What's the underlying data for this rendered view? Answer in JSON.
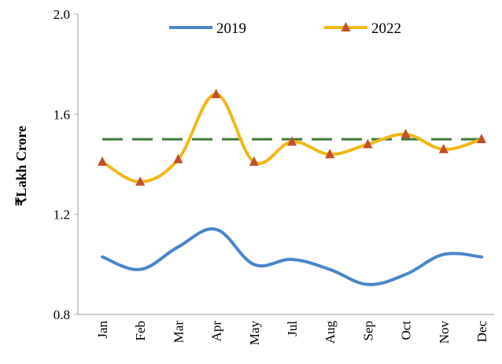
{
  "chart_data": {
    "type": "line",
    "title": "",
    "xlabel": "",
    "ylabel": "₹Lakh Crore",
    "categories": [
      "Jan",
      "Feb",
      "Mar",
      "Apr",
      "May",
      "Jul",
      "Aug",
      "Sep",
      "Oct",
      "Nov",
      "Dec"
    ],
    "ylim": [
      0.8,
      2.0
    ],
    "yticks": [
      "0.8",
      "1.2",
      "1.6",
      "2.0"
    ],
    "grid": false,
    "legend_position": "top",
    "series": [
      {
        "name": "2019",
        "values": [
          1.03,
          0.98,
          1.07,
          1.14,
          1.0,
          1.02,
          0.98,
          0.92,
          0.96,
          1.04,
          1.03
        ],
        "color": "#4a86c8",
        "marker": "none"
      },
      {
        "name": "2022",
        "values": [
          1.41,
          1.33,
          1.42,
          1.68,
          1.41,
          1.49,
          1.44,
          1.48,
          1.52,
          1.46,
          1.5
        ],
        "color": "#f2b718",
        "marker": "triangle",
        "marker_color": "#c0502a"
      }
    ],
    "reference_line": {
      "value": 1.5,
      "style": "dashed",
      "color": "#3f7a3a"
    }
  }
}
